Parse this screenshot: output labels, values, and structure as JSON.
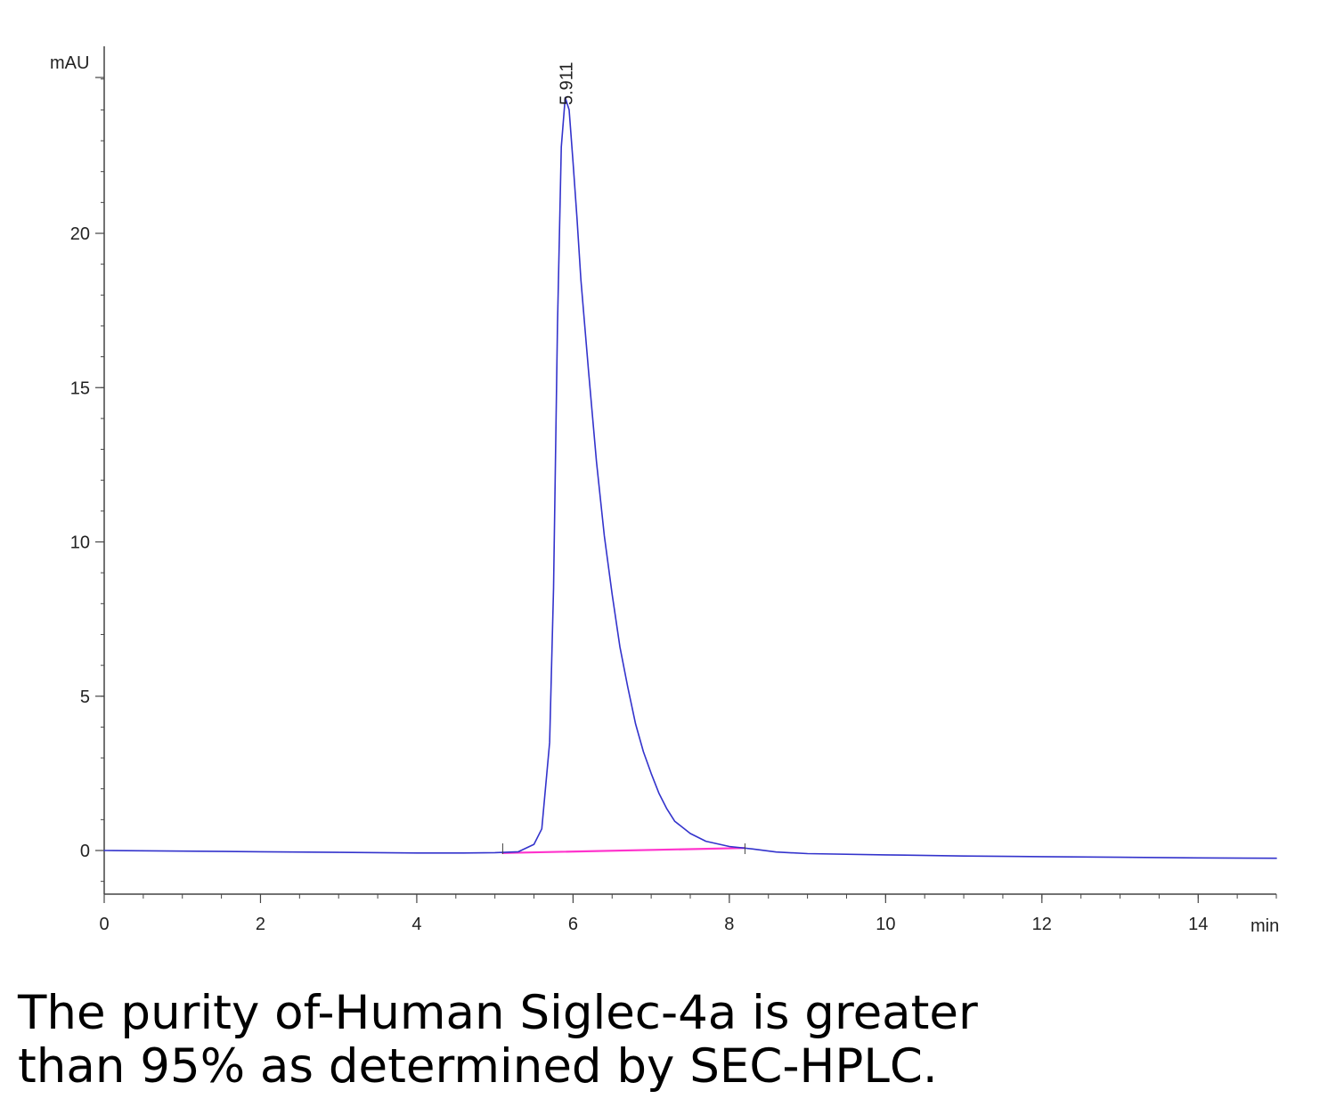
{
  "chart_data": {
    "type": "line",
    "ylabel": "mAU",
    "xlabel": "min",
    "xlim": [
      0,
      15
    ],
    "ylim": [
      -1.5,
      26
    ],
    "x_ticks": [
      0,
      2,
      4,
      6,
      8,
      10,
      12,
      14
    ],
    "x_tick_labels": [
      "0",
      "2",
      "4",
      "6",
      "8",
      "10",
      "12",
      "14"
    ],
    "y_ticks": [
      0,
      5,
      10,
      15,
      20
    ],
    "y_tick_labels": [
      "0",
      "5",
      "10",
      "15",
      "20"
    ],
    "grid": false,
    "peak_annotation": {
      "x": 5.911,
      "y": 24.5,
      "label": "5.911"
    },
    "series": [
      {
        "color": "#3333cc",
        "x": [
          0,
          1,
          2,
          3,
          4,
          4.6,
          5.0,
          5.3,
          5.5,
          5.6,
          5.7,
          5.75,
          5.8,
          5.85,
          5.9,
          5.95,
          6.0,
          6.05,
          6.1,
          6.2,
          6.3,
          6.4,
          6.5,
          6.6,
          6.7,
          6.8,
          6.9,
          7.0,
          7.1,
          7.2,
          7.3,
          7.5,
          7.7,
          8.0,
          8.3,
          8.6,
          9.0,
          10,
          11,
          12,
          13,
          14,
          15
        ],
        "y": [
          0,
          -0.02,
          -0.04,
          -0.06,
          -0.08,
          -0.08,
          -0.07,
          -0.04,
          0.2,
          0.7,
          3.5,
          8.5,
          17.0,
          22.8,
          24.4,
          24.0,
          22.3,
          20.5,
          18.5,
          15.5,
          12.6,
          10.2,
          8.3,
          6.6,
          5.3,
          4.1,
          3.2,
          2.5,
          1.85,
          1.35,
          0.95,
          0.55,
          0.3,
          0.13,
          0.05,
          -0.05,
          -0.1,
          -0.14,
          -0.18,
          -0.2,
          -0.22,
          -0.24,
          -0.25
        ]
      },
      {
        "color": "#ff33cc",
        "x": [
          5.1,
          8.2
        ],
        "y": [
          -0.08,
          0.08
        ]
      }
    ],
    "baseline_markers": [
      5.1,
      8.2
    ]
  },
  "caption": {
    "line1": "The purity of-Human Siglec-4a is greater",
    "line2": "than 95% as determined by SEC-HPLC."
  }
}
